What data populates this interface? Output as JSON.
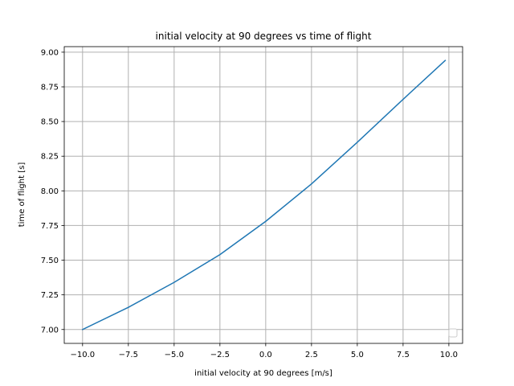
{
  "chart_data": {
    "type": "line",
    "title": "initial velocity at 90 degrees vs time of flight",
    "xlabel": "initial velocity at 90 degrees [m/s]",
    "ylabel": "time of flight [s]",
    "xlim": [
      -11.0,
      10.75
    ],
    "ylim": [
      6.9,
      9.04
    ],
    "xticks": [
      -10.0,
      -7.5,
      -5.0,
      -2.5,
      0.0,
      2.5,
      5.0,
      7.5,
      10.0
    ],
    "xtick_labels": [
      "−10.0",
      "−7.5",
      "−5.0",
      "−2.5",
      "0.0",
      "2.5",
      "5.0",
      "7.5",
      "10.0"
    ],
    "yticks": [
      7.0,
      7.25,
      7.5,
      7.75,
      8.0,
      8.25,
      8.5,
      8.75,
      9.0
    ],
    "ytick_labels": [
      "7.00",
      "7.25",
      "7.50",
      "7.75",
      "8.00",
      "8.25",
      "8.50",
      "8.75",
      "9.00"
    ],
    "grid": true,
    "legend": "lower-right, empty",
    "series": [
      {
        "color": "#1f77b4",
        "x": [
          -10.0,
          -7.5,
          -5.0,
          -2.5,
          0.0,
          2.5,
          5.0,
          7.5,
          9.8
        ],
        "y": [
          7.0,
          7.16,
          7.34,
          7.54,
          7.78,
          8.05,
          8.35,
          8.66,
          8.94
        ]
      }
    ]
  }
}
